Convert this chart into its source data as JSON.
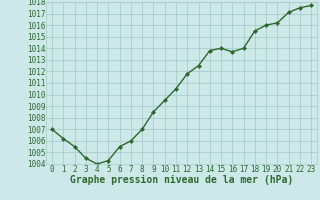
{
  "x": [
    0,
    1,
    2,
    3,
    4,
    5,
    6,
    7,
    8,
    9,
    10,
    11,
    12,
    13,
    14,
    15,
    16,
    17,
    18,
    19,
    20,
    21,
    22,
    23
  ],
  "y": [
    1007.0,
    1006.2,
    1005.5,
    1004.5,
    1004.0,
    1004.3,
    1005.5,
    1006.0,
    1007.0,
    1008.5,
    1009.5,
    1010.5,
    1011.8,
    1012.5,
    1013.8,
    1014.0,
    1013.7,
    1014.0,
    1015.5,
    1016.0,
    1016.2,
    1017.1,
    1017.5,
    1017.7
  ],
  "ylim": [
    1004,
    1018
  ],
  "yticks": [
    1004,
    1005,
    1006,
    1007,
    1008,
    1009,
    1010,
    1011,
    1012,
    1013,
    1014,
    1015,
    1016,
    1017,
    1018
  ],
  "xticks": [
    0,
    1,
    2,
    3,
    4,
    5,
    6,
    7,
    8,
    9,
    10,
    11,
    12,
    13,
    14,
    15,
    16,
    17,
    18,
    19,
    20,
    21,
    22,
    23
  ],
  "line_color": "#2d6a2d",
  "marker": "D",
  "marker_size": 2.0,
  "bg_color": "#cce8e8",
  "grid_color": "#aacccc",
  "xlabel": "Graphe pression niveau de la mer (hPa)",
  "xlabel_color": "#2d6a2d",
  "tick_color": "#2d6a2d",
  "tick_fontsize": 5.5,
  "xlabel_fontsize": 7.0,
  "line_width": 1.0
}
